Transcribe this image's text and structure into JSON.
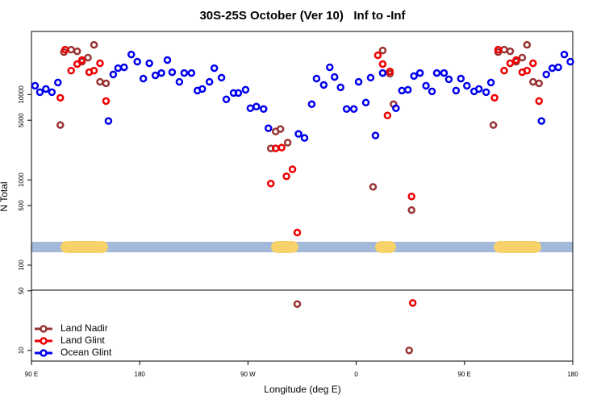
{
  "chart_data": {
    "type": "scatter",
    "title": "30S-25S October (Ver 10)   Inf to -Inf",
    "x_label": "Longitude (deg E)",
    "y_label": "N Total",
    "y_scale": "log",
    "legend": "bottom-left",
    "xlim": [
      90,
      540
    ],
    "xticks": [
      {
        "value": 90,
        "label": "90 E"
      },
      180,
      {
        "value": 270,
        "label": "90 W"
      },
      {
        "value": 360,
        "label": "0"
      },
      {
        "value": 450,
        "label": "90 E"
      },
      {
        "value": 540,
        "label": "180"
      }
    ],
    "ylim": [
      7.5,
      55000
    ],
    "yticks": [
      10,
      50,
      100,
      500,
      1000,
      5000,
      10000
    ],
    "series": [
      {
        "name": "Land Nadir",
        "color": "#993333",
        "x": [
          114,
          117,
          123,
          128,
          132,
          137,
          142,
          147,
          152,
          289,
          293,
          297,
          303,
          311,
          374,
          382,
          388,
          391,
          406,
          404,
          474,
          478,
          483,
          488,
          493,
          498,
          502,
          507,
          512
        ],
        "values": [
          4390,
          31500,
          33600,
          32200,
          24300,
          27100,
          38300,
          14100,
          13540,
          2340,
          3690,
          3940,
          2730,
          35,
          828,
          32900,
          17600,
          7710,
          442,
          10,
          4390,
          31500,
          33600,
          32200,
          24300,
          27100,
          38300,
          14100,
          13540
        ]
      },
      {
        "name": "Land Glint",
        "color": "#ee0000",
        "x": [
          114,
          118,
          123,
          128,
          132,
          138,
          142,
          147,
          152,
          289,
          293,
          298,
          302,
          307,
          311,
          378,
          382,
          388,
          386,
          406,
          407,
          475,
          478,
          483,
          488,
          493,
          498,
          502,
          507,
          512
        ],
        "values": [
          9170,
          33600,
          19100,
          22800,
          25400,
          18300,
          19100,
          23300,
          8400,
          904,
          2340,
          2390,
          1100,
          1330,
          241,
          28900,
          22800,
          18700,
          5690,
          638,
          36,
          9170,
          33600,
          19100,
          23300,
          25400,
          18300,
          19100,
          23300,
          8400
        ]
      },
      {
        "name": "Ocean Glint",
        "color": "#0000ee",
        "x": [
          93,
          97,
          102,
          107,
          112,
          154,
          158,
          162,
          167,
          173,
          178,
          183,
          188,
          193,
          198,
          203,
          207,
          213,
          217,
          223,
          228,
          232,
          238,
          242,
          248,
          252,
          258,
          262,
          268,
          272,
          277,
          283,
          287,
          312,
          317,
          323,
          327,
          333,
          338,
          342,
          347,
          352,
          358,
          362,
          368,
          372,
          376,
          382,
          393,
          398,
          403,
          408,
          413,
          418,
          423,
          427,
          433,
          437,
          443,
          447,
          452,
          458,
          462,
          468,
          472,
          514,
          518,
          523,
          528,
          533,
          538
        ],
        "values": [
          12700,
          10670,
          11640,
          10670,
          13840,
          4900,
          17200,
          20400,
          20900,
          29500,
          24300,
          15400,
          23300,
          16800,
          17900,
          25400,
          18300,
          14100,
          17900,
          17900,
          11140,
          11640,
          14100,
          20400,
          15800,
          8790,
          10440,
          10440,
          11390,
          6920,
          7230,
          6770,
          4030,
          3460,
          3100,
          7710,
          15400,
          12970,
          20900,
          16100,
          12150,
          6770,
          6770,
          14100,
          8050,
          15800,
          3310,
          17900,
          6920,
          11140,
          11390,
          16500,
          17900,
          12700,
          10900,
          17900,
          17900,
          15100,
          11140,
          15400,
          12700,
          10900,
          11640,
          10670,
          13840,
          4900,
          17200,
          20400,
          20900,
          29500,
          24300
        ]
      }
    ]
  }
}
